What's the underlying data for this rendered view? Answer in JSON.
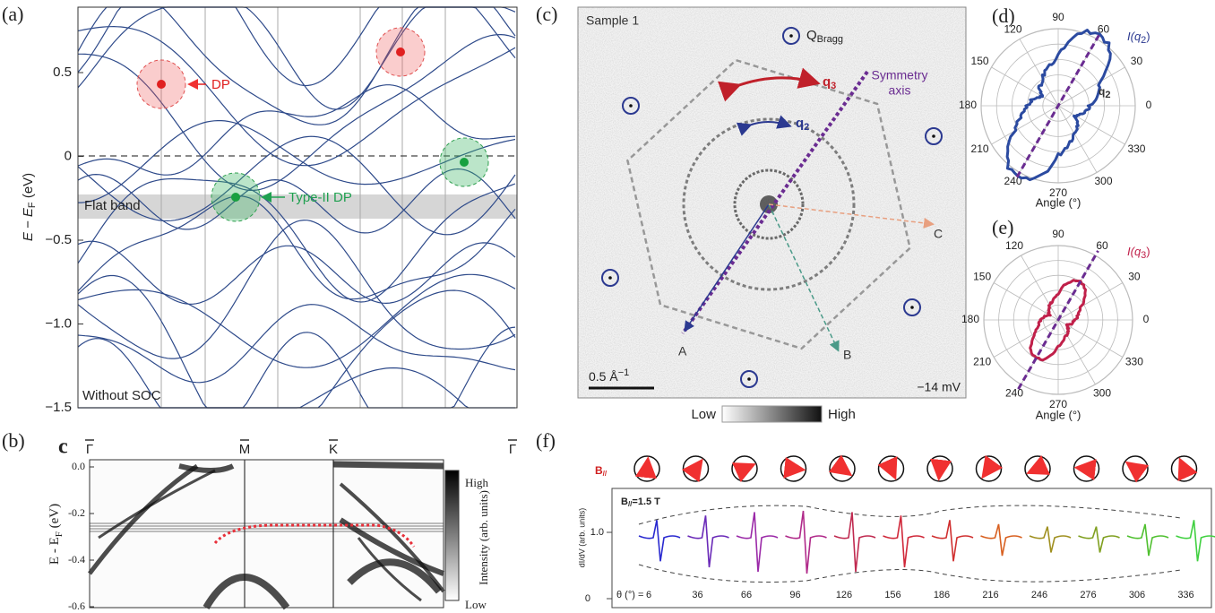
{
  "panels": {
    "a": {
      "label": "(a)",
      "y_label": {
        "main": "E − E",
        "sub": "F",
        "unit": " (eV)"
      },
      "yticks": [
        "0.5",
        "0",
        "−0.5",
        "−1.0",
        "−1.5"
      ],
      "annotations": {
        "dp": "DP",
        "type_ii_dp": "Type-II DP",
        "flat_band": "Flat band",
        "without_soc": "Without SOC"
      }
    },
    "b": {
      "label": "(b)",
      "inner_label": "c",
      "kpoints": [
        "Γ",
        "M",
        "K",
        "Γ"
      ],
      "y_label": {
        "main": "E - E",
        "sub": "F",
        "unit": " (eV)"
      },
      "yticks": [
        "0.0",
        "-0.2",
        "-0.4",
        "-0.6"
      ],
      "colorbar": {
        "high": "High",
        "low": "Low",
        "label": "Intensity (arb. units)"
      }
    },
    "c": {
      "label": "(c)",
      "sample": "Sample 1",
      "bragg": {
        "main": "Q",
        "sub": "Bragg"
      },
      "symmetry_axis": [
        "Symmetry",
        "axis"
      ],
      "q3": {
        "main": "q",
        "sub": "3"
      },
      "q2": {
        "main": "q",
        "sub": "2"
      },
      "points": [
        "A",
        "B",
        "C"
      ],
      "scale_bar": {
        "main": "0.5 Å",
        "sup": "−1"
      },
      "bias": "−14 mV",
      "colorbar": {
        "low": "Low",
        "high": "High"
      }
    },
    "d": {
      "label": "(d)",
      "angles": [
        "90",
        "60",
        "30",
        "0",
        "330",
        "300",
        "270",
        "240",
        "210",
        "180",
        "150",
        "120"
      ],
      "series_label": {
        "main": "I(q",
        "sub": "2",
        "close": ")"
      },
      "inner_label": {
        "main": "q",
        "sub": "2"
      },
      "x_label": "Angle (°)"
    },
    "e": {
      "label": "(e)",
      "angles": [
        "90",
        "60",
        "30",
        "0",
        "330",
        "300",
        "270",
        "240",
        "210",
        "180",
        "150",
        "120"
      ],
      "series_label": {
        "main": "I(q",
        "sub": "3",
        "close": ")"
      },
      "x_label": "Angle (°)"
    },
    "f": {
      "label": "(f)",
      "field_label": {
        "main": "B",
        "sub": "//"
      },
      "field_value": {
        "main": "B",
        "sub": "//",
        "rest": "=1.5 T"
      },
      "theta_label": "θ (°) =",
      "thetas": [
        "6",
        "36",
        "66",
        "96",
        "126",
        "156",
        "186",
        "216",
        "246",
        "276",
        "306",
        "336"
      ],
      "y_label": "dI/dV (arb. units)",
      "yticks": [
        "1.0",
        "0"
      ]
    }
  }
}
